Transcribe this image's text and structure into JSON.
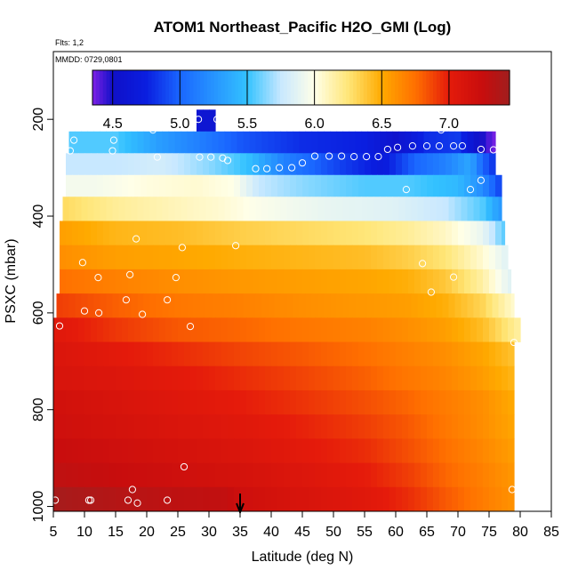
{
  "chart_data": {
    "type": "heatmap",
    "title": "ATOM1 Northeast_Pacific H2O_GMI (Log)",
    "flights_text": "Flts: 1,2",
    "mmdd_text": "MMDD: 0729,0801",
    "xlabel": "Latitude (deg N)",
    "ylabel": "PSXC (mbar)",
    "xlim": [
      5,
      85
    ],
    "ylim": [
      1010,
      60
    ],
    "y_inverted": true,
    "x_ticks": [
      5,
      10,
      15,
      20,
      25,
      30,
      35,
      40,
      45,
      50,
      55,
      60,
      65,
      70,
      75,
      80,
      85
    ],
    "x_tick_labels": [
      "5",
      "10",
      "15",
      "20",
      "25",
      "30",
      "35",
      "40",
      "45",
      "50",
      "55",
      "60",
      "65",
      "70",
      "75",
      "80",
      "85"
    ],
    "y_ticks": [
      200,
      400,
      600,
      800,
      1000
    ],
    "y_tick_labels": [
      "200",
      "400",
      "600",
      "800",
      "1000"
    ],
    "colorbar": {
      "range": [
        4.35,
        7.45
      ],
      "ticks": [
        4.5,
        5.0,
        5.5,
        6.0,
        6.5,
        7.0
      ],
      "tick_labels": [
        "4.5",
        "5.0",
        "5.5",
        "6.0",
        "6.5",
        "7.0"
      ],
      "stops": [
        [
          4.35,
          "#7e22e6"
        ],
        [
          4.5,
          "#1010c8"
        ],
        [
          4.75,
          "#0a1ee0"
        ],
        [
          5.0,
          "#1a66ff"
        ],
        [
          5.5,
          "#33c2ff"
        ],
        [
          5.75,
          "#c8e8ff"
        ],
        [
          6.0,
          "#ffffe8"
        ],
        [
          6.25,
          "#ffe678"
        ],
        [
          6.5,
          "#ffaa00"
        ],
        [
          6.75,
          "#ff7000"
        ],
        [
          7.0,
          "#e51b0b"
        ],
        [
          7.25,
          "#c80d0d"
        ],
        [
          7.45,
          "#a01e1e"
        ]
      ]
    },
    "arrow_latitude": 35,
    "rows": [
      {
        "p_top": 180,
        "p_bot": 225,
        "x_start": 28,
        "x_end": 31,
        "anchors": [
          [
            28,
            4.6
          ],
          [
            31,
            4.6
          ]
        ]
      },
      {
        "p_top": 225,
        "p_bot": 270,
        "x_start": 7.5,
        "x_end": 76,
        "anchors": [
          [
            7.5,
            5.55
          ],
          [
            15,
            5.55
          ],
          [
            22,
            5.3
          ],
          [
            28,
            5.15
          ],
          [
            35,
            4.95
          ],
          [
            45,
            4.8
          ],
          [
            55,
            4.75
          ],
          [
            60,
            4.55
          ],
          [
            65,
            4.8
          ],
          [
            70,
            4.85
          ],
          [
            73,
            4.55
          ],
          [
            76,
            4.35
          ]
        ]
      },
      {
        "p_top": 270,
        "p_bot": 315,
        "x_start": 7,
        "x_end": 76,
        "anchors": [
          [
            7,
            5.75
          ],
          [
            15,
            5.75
          ],
          [
            22,
            5.8
          ],
          [
            30,
            5.65
          ],
          [
            36,
            5.5
          ],
          [
            42,
            5.15
          ],
          [
            50,
            4.9
          ],
          [
            58,
            4.7
          ],
          [
            63,
            5.0
          ],
          [
            68,
            5.15
          ],
          [
            72,
            5.35
          ],
          [
            74,
            5.0
          ],
          [
            76,
            4.8
          ]
        ]
      },
      {
        "p_top": 315,
        "p_bot": 360,
        "x_start": 7,
        "x_end": 77,
        "anchors": [
          [
            7,
            5.95
          ],
          [
            12,
            5.95
          ],
          [
            20,
            6.02
          ],
          [
            28,
            6.05
          ],
          [
            34,
            6.0
          ],
          [
            38,
            5.75
          ],
          [
            45,
            5.65
          ],
          [
            55,
            5.55
          ],
          [
            62,
            5.55
          ],
          [
            70,
            5.45
          ],
          [
            74,
            5.2
          ],
          [
            77,
            4.85
          ]
        ]
      },
      {
        "p_top": 360,
        "p_bot": 410,
        "x_start": 6.5,
        "x_end": 77,
        "anchors": [
          [
            6.5,
            6.3
          ],
          [
            15,
            6.18
          ],
          [
            25,
            6.1
          ],
          [
            32,
            6.05
          ],
          [
            38,
            5.98
          ],
          [
            48,
            5.9
          ],
          [
            60,
            5.85
          ],
          [
            68,
            5.75
          ],
          [
            74,
            5.55
          ],
          [
            77,
            5.25
          ]
        ]
      },
      {
        "p_top": 410,
        "p_bot": 460,
        "x_start": 6,
        "x_end": 77.5,
        "anchors": [
          [
            6,
            6.55
          ],
          [
            15,
            6.45
          ],
          [
            25,
            6.42
          ],
          [
            35,
            6.35
          ],
          [
            45,
            6.3
          ],
          [
            55,
            6.25
          ],
          [
            62,
            6.18
          ],
          [
            68,
            6.08
          ],
          [
            74,
            5.9
          ],
          [
            77.5,
            5.55
          ]
        ]
      },
      {
        "p_top": 460,
        "p_bot": 510,
        "x_start": 6,
        "x_end": 78,
        "anchors": [
          [
            6,
            6.62
          ],
          [
            15,
            6.55
          ],
          [
            25,
            6.52
          ],
          [
            35,
            6.48
          ],
          [
            45,
            6.45
          ],
          [
            55,
            6.42
          ],
          [
            62,
            6.35
          ],
          [
            68,
            6.25
          ],
          [
            74,
            6.05
          ],
          [
            78,
            5.85
          ]
        ]
      },
      {
        "p_top": 510,
        "p_bot": 560,
        "x_start": 6,
        "x_end": 78.5,
        "anchors": [
          [
            6,
            6.75
          ],
          [
            15,
            6.68
          ],
          [
            25,
            6.62
          ],
          [
            35,
            6.58
          ],
          [
            45,
            6.55
          ],
          [
            55,
            6.52
          ],
          [
            62,
            6.48
          ],
          [
            68,
            6.38
          ],
          [
            74,
            6.15
          ],
          [
            78.5,
            5.85
          ]
        ]
      },
      {
        "p_top": 560,
        "p_bot": 610,
        "x_start": 5.5,
        "x_end": 79,
        "anchors": [
          [
            5.5,
            6.9
          ],
          [
            15,
            6.8
          ],
          [
            25,
            6.72
          ],
          [
            35,
            6.68
          ],
          [
            45,
            6.62
          ],
          [
            55,
            6.58
          ],
          [
            62,
            6.55
          ],
          [
            68,
            6.48
          ],
          [
            74,
            6.32
          ],
          [
            79,
            6.05
          ]
        ]
      },
      {
        "p_top": 610,
        "p_bot": 660,
        "x_start": 5,
        "x_end": 80,
        "anchors": [
          [
            5,
            7.05
          ],
          [
            15,
            6.92
          ],
          [
            25,
            6.82
          ],
          [
            35,
            6.78
          ],
          [
            45,
            6.72
          ],
          [
            55,
            6.68
          ],
          [
            62,
            6.62
          ],
          [
            68,
            6.55
          ],
          [
            74,
            6.42
          ],
          [
            80,
            6.15
          ]
        ]
      },
      {
        "p_top": 660,
        "p_bot": 710,
        "x_start": 5,
        "x_end": 79,
        "anchors": [
          [
            5,
            7.1
          ],
          [
            15,
            7.02
          ],
          [
            25,
            6.95
          ],
          [
            35,
            6.88
          ],
          [
            45,
            6.82
          ],
          [
            55,
            6.75
          ],
          [
            62,
            6.68
          ],
          [
            68,
            6.62
          ],
          [
            74,
            6.52
          ],
          [
            79,
            6.4
          ]
        ]
      },
      {
        "p_top": 710,
        "p_bot": 760,
        "x_start": 5,
        "x_end": 79,
        "anchors": [
          [
            5,
            7.12
          ],
          [
            15,
            7.08
          ],
          [
            25,
            7.02
          ],
          [
            35,
            6.95
          ],
          [
            45,
            6.88
          ],
          [
            55,
            6.8
          ],
          [
            62,
            6.72
          ],
          [
            68,
            6.66
          ],
          [
            74,
            6.56
          ],
          [
            79,
            6.45
          ]
        ]
      },
      {
        "p_top": 760,
        "p_bot": 810,
        "x_start": 5,
        "x_end": 79,
        "anchors": [
          [
            5,
            7.18
          ],
          [
            15,
            7.12
          ],
          [
            25,
            7.06
          ],
          [
            35,
            7.0
          ],
          [
            45,
            6.93
          ],
          [
            55,
            6.85
          ],
          [
            62,
            6.78
          ],
          [
            68,
            6.7
          ],
          [
            74,
            6.62
          ],
          [
            79,
            6.5
          ]
        ]
      },
      {
        "p_top": 810,
        "p_bot": 860,
        "x_start": 5,
        "x_end": 79,
        "anchors": [
          [
            5,
            7.2
          ],
          [
            15,
            7.15
          ],
          [
            25,
            7.1
          ],
          [
            35,
            7.05
          ],
          [
            45,
            6.98
          ],
          [
            55,
            6.9
          ],
          [
            62,
            6.82
          ],
          [
            68,
            6.72
          ],
          [
            74,
            6.62
          ],
          [
            79,
            6.52
          ]
        ]
      },
      {
        "p_top": 860,
        "p_bot": 910,
        "x_start": 5,
        "x_end": 79,
        "anchors": [
          [
            5,
            7.25
          ],
          [
            15,
            7.2
          ],
          [
            25,
            7.15
          ],
          [
            35,
            7.1
          ],
          [
            45,
            7.02
          ],
          [
            55,
            6.95
          ],
          [
            62,
            6.85
          ],
          [
            68,
            6.75
          ],
          [
            74,
            6.65
          ],
          [
            79,
            6.55
          ]
        ]
      },
      {
        "p_top": 910,
        "p_bot": 960,
        "x_start": 5,
        "x_end": 79,
        "anchors": [
          [
            5,
            7.3
          ],
          [
            15,
            7.25
          ],
          [
            25,
            7.2
          ],
          [
            35,
            7.15
          ],
          [
            45,
            7.08
          ],
          [
            55,
            7.0
          ],
          [
            62,
            6.9
          ],
          [
            68,
            6.78
          ],
          [
            74,
            6.68
          ],
          [
            79,
            6.58
          ]
        ]
      },
      {
        "p_top": 960,
        "p_bot": 1010,
        "x_start": 5,
        "x_end": 79,
        "anchors": [
          [
            5,
            7.42
          ],
          [
            15,
            7.35
          ],
          [
            25,
            7.3
          ],
          [
            33,
            7.28
          ],
          [
            35,
            7.2
          ],
          [
            45,
            7.12
          ],
          [
            55,
            7.05
          ],
          [
            62,
            6.95
          ],
          [
            68,
            6.82
          ],
          [
            74,
            6.7
          ],
          [
            79,
            6.6
          ]
        ]
      }
    ],
    "points": [
      [
        28.3,
        200
      ],
      [
        31.3,
        200
      ],
      [
        8.3,
        243
      ],
      [
        14.7,
        243
      ],
      [
        21.0,
        222
      ],
      [
        67.3,
        222
      ],
      [
        62.7,
        255
      ],
      [
        65.0,
        255
      ],
      [
        67.0,
        255
      ],
      [
        69.3,
        255
      ],
      [
        70.7,
        255
      ],
      [
        60.3,
        258
      ],
      [
        58.7,
        262
      ],
      [
        73.7,
        262
      ],
      [
        75.7,
        263
      ],
      [
        7.7,
        265
      ],
      [
        14.5,
        265
      ],
      [
        21.7,
        278
      ],
      [
        28.5,
        278
      ],
      [
        30.3,
        278
      ],
      [
        32.2,
        280
      ],
      [
        33.0,
        285
      ],
      [
        47.0,
        276
      ],
      [
        49.3,
        276
      ],
      [
        51.3,
        276
      ],
      [
        53.3,
        277
      ],
      [
        55.3,
        277
      ],
      [
        57.2,
        277
      ],
      [
        45.0,
        290
      ],
      [
        43.3,
        300
      ],
      [
        41.3,
        300
      ],
      [
        39.3,
        302
      ],
      [
        37.5,
        302
      ],
      [
        73.7,
        326
      ],
      [
        72.0,
        345
      ],
      [
        61.7,
        345
      ],
      [
        18.3,
        447
      ],
      [
        25.7,
        465
      ],
      [
        34.3,
        461
      ],
      [
        5.3,
        515
      ],
      [
        9.7,
        496
      ],
      [
        12.2,
        527
      ],
      [
        17.3,
        521
      ],
      [
        24.7,
        527
      ],
      [
        64.3,
        498
      ],
      [
        69.3,
        526
      ],
      [
        65.7,
        557
      ],
      [
        16.7,
        573
      ],
      [
        23.3,
        573
      ],
      [
        10.0,
        596
      ],
      [
        12.3,
        600
      ],
      [
        19.3,
        603
      ],
      [
        6.0,
        627
      ],
      [
        27.0,
        628
      ],
      [
        79.0,
        661
      ],
      [
        26.0,
        918
      ],
      [
        17.7,
        965
      ],
      [
        78.7,
        965
      ],
      [
        5.3,
        987
      ],
      [
        10.7,
        987
      ],
      [
        11.0,
        987
      ],
      [
        17.0,
        987
      ],
      [
        18.5,
        993
      ],
      [
        23.3,
        987
      ]
    ]
  }
}
